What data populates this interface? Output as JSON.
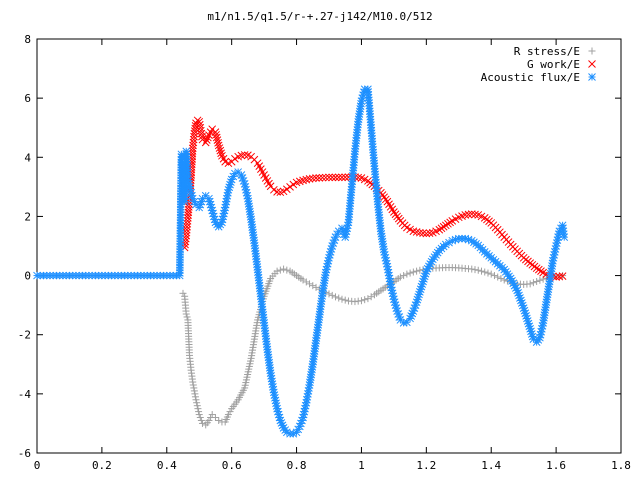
{
  "chart_data": {
    "type": "scatter",
    "title": "m1/n1.5/q1.5/r-+.27-j142/M10.0/512",
    "xlim": [
      0,
      1.8
    ],
    "ylim": [
      -6,
      8
    ],
    "x_ticks": [
      "0",
      "0.2",
      "0.4",
      "0.6",
      "0.8",
      "1",
      "1.2",
      "1.4",
      "1.6",
      "1.8"
    ],
    "y_ticks": [
      "-6",
      "-4",
      "-2",
      "0",
      "2",
      "4",
      "6",
      "8"
    ],
    "legend_position": "top-right",
    "series": [
      {
        "name": "R stress/E",
        "marker": "+",
        "color": "#a0a0a0",
        "points": [
          [
            0.45,
            -0.6
          ],
          [
            0.455,
            -0.7
          ],
          [
            0.46,
            -1.3
          ],
          [
            0.465,
            -1.5
          ],
          [
            0.47,
            -2.7
          ],
          [
            0.475,
            -3.2
          ],
          [
            0.48,
            -3.6
          ],
          [
            0.49,
            -4.2
          ],
          [
            0.5,
            -4.7
          ],
          [
            0.51,
            -5.0
          ],
          [
            0.52,
            -5.05
          ],
          [
            0.53,
            -4.9
          ],
          [
            0.54,
            -4.7
          ],
          [
            0.55,
            -4.8
          ],
          [
            0.56,
            -4.9
          ],
          [
            0.57,
            -4.95
          ],
          [
            0.58,
            -4.95
          ],
          [
            0.59,
            -4.7
          ],
          [
            0.6,
            -4.5
          ],
          [
            0.62,
            -4.2
          ],
          [
            0.64,
            -3.8
          ],
          [
            0.66,
            -2.8
          ],
          [
            0.68,
            -1.5
          ],
          [
            0.7,
            -0.7
          ],
          [
            0.72,
            -0.1
          ],
          [
            0.74,
            0.15
          ],
          [
            0.76,
            0.22
          ],
          [
            0.78,
            0.15
          ],
          [
            0.8,
            0.0
          ],
          [
            0.82,
            -0.15
          ],
          [
            0.84,
            -0.28
          ],
          [
            0.86,
            -0.4
          ],
          [
            0.88,
            -0.52
          ],
          [
            0.9,
            -0.62
          ],
          [
            0.92,
            -0.72
          ],
          [
            0.94,
            -0.8
          ],
          [
            0.96,
            -0.86
          ],
          [
            0.98,
            -0.88
          ],
          [
            1.0,
            -0.85
          ],
          [
            1.02,
            -0.78
          ],
          [
            1.04,
            -0.65
          ],
          [
            1.06,
            -0.5
          ],
          [
            1.08,
            -0.35
          ],
          [
            1.1,
            -0.2
          ],
          [
            1.12,
            -0.05
          ],
          [
            1.14,
            0.05
          ],
          [
            1.16,
            0.12
          ],
          [
            1.18,
            0.18
          ],
          [
            1.2,
            0.22
          ],
          [
            1.22,
            0.25
          ],
          [
            1.24,
            0.26
          ],
          [
            1.26,
            0.27
          ],
          [
            1.28,
            0.27
          ],
          [
            1.3,
            0.26
          ],
          [
            1.32,
            0.24
          ],
          [
            1.34,
            0.22
          ],
          [
            1.36,
            0.18
          ],
          [
            1.38,
            0.12
          ],
          [
            1.4,
            0.05
          ],
          [
            1.42,
            -0.05
          ],
          [
            1.44,
            -0.15
          ],
          [
            1.46,
            -0.22
          ],
          [
            1.48,
            -0.28
          ],
          [
            1.5,
            -0.3
          ],
          [
            1.52,
            -0.28
          ],
          [
            1.54,
            -0.2
          ],
          [
            1.56,
            -0.12
          ],
          [
            1.58,
            -0.06
          ],
          [
            1.6,
            -0.02
          ],
          [
            1.62,
            0.0
          ]
        ]
      },
      {
        "name": "G work/E",
        "marker": "x",
        "color": "#ff0000",
        "points": [
          [
            0.455,
            0.95
          ],
          [
            0.46,
            1.35
          ],
          [
            0.465,
            1.95
          ],
          [
            0.47,
            2.6
          ],
          [
            0.475,
            3.4
          ],
          [
            0.48,
            4.3
          ],
          [
            0.485,
            4.8
          ],
          [
            0.49,
            5.15
          ],
          [
            0.495,
            5.25
          ],
          [
            0.5,
            5.2
          ],
          [
            0.505,
            4.9
          ],
          [
            0.51,
            4.6
          ],
          [
            0.52,
            4.5
          ],
          [
            0.53,
            4.75
          ],
          [
            0.54,
            4.95
          ],
          [
            0.55,
            4.85
          ],
          [
            0.56,
            4.4
          ],
          [
            0.57,
            4.05
          ],
          [
            0.58,
            3.85
          ],
          [
            0.59,
            3.8
          ],
          [
            0.6,
            3.85
          ],
          [
            0.61,
            3.95
          ],
          [
            0.62,
            4.02
          ],
          [
            0.63,
            4.06
          ],
          [
            0.64,
            4.08
          ],
          [
            0.65,
            4.07
          ],
          [
            0.66,
            4.02
          ],
          [
            0.67,
            3.92
          ],
          [
            0.68,
            3.8
          ],
          [
            0.69,
            3.6
          ],
          [
            0.7,
            3.4
          ],
          [
            0.71,
            3.2
          ],
          [
            0.72,
            3.02
          ],
          [
            0.73,
            2.9
          ],
          [
            0.74,
            2.83
          ],
          [
            0.75,
            2.82
          ],
          [
            0.76,
            2.85
          ],
          [
            0.77,
            2.92
          ],
          [
            0.78,
            3.0
          ],
          [
            0.79,
            3.08
          ],
          [
            0.8,
            3.15
          ],
          [
            0.82,
            3.22
          ],
          [
            0.84,
            3.27
          ],
          [
            0.86,
            3.3
          ],
          [
            0.88,
            3.31
          ],
          [
            0.9,
            3.32
          ],
          [
            0.92,
            3.32
          ],
          [
            0.94,
            3.32
          ],
          [
            0.96,
            3.33
          ],
          [
            0.98,
            3.33
          ],
          [
            1.0,
            3.3
          ],
          [
            1.02,
            3.2
          ],
          [
            1.04,
            3.02
          ],
          [
            1.06,
            2.8
          ],
          [
            1.08,
            2.5
          ],
          [
            1.1,
            2.15
          ],
          [
            1.12,
            1.85
          ],
          [
            1.14,
            1.62
          ],
          [
            1.16,
            1.5
          ],
          [
            1.18,
            1.45
          ],
          [
            1.2,
            1.42
          ],
          [
            1.22,
            1.45
          ],
          [
            1.24,
            1.55
          ],
          [
            1.26,
            1.7
          ],
          [
            1.28,
            1.85
          ],
          [
            1.3,
            1.97
          ],
          [
            1.32,
            2.05
          ],
          [
            1.34,
            2.08
          ],
          [
            1.36,
            2.05
          ],
          [
            1.38,
            1.95
          ],
          [
            1.4,
            1.78
          ],
          [
            1.42,
            1.55
          ],
          [
            1.44,
            1.3
          ],
          [
            1.46,
            1.05
          ],
          [
            1.48,
            0.82
          ],
          [
            1.5,
            0.6
          ],
          [
            1.52,
            0.42
          ],
          [
            1.54,
            0.25
          ],
          [
            1.56,
            0.1
          ],
          [
            1.58,
            0.0
          ],
          [
            1.6,
            -0.05
          ],
          [
            1.62,
            -0.02
          ]
        ]
      },
      {
        "name": "Acoustic flux/E",
        "marker": "*",
        "color": "#1e90ff",
        "points": [
          [
            0.0,
            0.0
          ],
          [
            0.02,
            0.0
          ],
          [
            0.04,
            0.0
          ],
          [
            0.06,
            0.0
          ],
          [
            0.08,
            0.0
          ],
          [
            0.1,
            0.0
          ],
          [
            0.12,
            0.0
          ],
          [
            0.14,
            0.0
          ],
          [
            0.16,
            0.0
          ],
          [
            0.18,
            0.0
          ],
          [
            0.2,
            0.0
          ],
          [
            0.22,
            0.0
          ],
          [
            0.24,
            0.0
          ],
          [
            0.26,
            0.0
          ],
          [
            0.28,
            0.0
          ],
          [
            0.3,
            0.0
          ],
          [
            0.32,
            0.0
          ],
          [
            0.34,
            0.0
          ],
          [
            0.36,
            0.0
          ],
          [
            0.38,
            0.0
          ],
          [
            0.4,
            0.0
          ],
          [
            0.42,
            0.0
          ],
          [
            0.44,
            0.0
          ],
          [
            0.445,
            4.1
          ],
          [
            0.45,
            3.7
          ],
          [
            0.455,
            2.5
          ],
          [
            0.46,
            4.2
          ],
          [
            0.465,
            3.3
          ],
          [
            0.47,
            3.0
          ],
          [
            0.48,
            2.6
          ],
          [
            0.49,
            2.4
          ],
          [
            0.5,
            2.3
          ],
          [
            0.51,
            2.6
          ],
          [
            0.52,
            2.7
          ],
          [
            0.53,
            2.6
          ],
          [
            0.54,
            2.2
          ],
          [
            0.55,
            1.8
          ],
          [
            0.56,
            1.65
          ],
          [
            0.57,
            1.8
          ],
          [
            0.58,
            2.3
          ],
          [
            0.59,
            2.9
          ],
          [
            0.6,
            3.25
          ],
          [
            0.61,
            3.45
          ],
          [
            0.62,
            3.5
          ],
          [
            0.63,
            3.4
          ],
          [
            0.64,
            3.1
          ],
          [
            0.65,
            2.6
          ],
          [
            0.66,
            1.9
          ],
          [
            0.67,
            1.1
          ],
          [
            0.68,
            0.2
          ],
          [
            0.69,
            -0.7
          ],
          [
            0.7,
            -1.6
          ],
          [
            0.71,
            -2.5
          ],
          [
            0.72,
            -3.3
          ],
          [
            0.73,
            -3.95
          ],
          [
            0.74,
            -4.5
          ],
          [
            0.75,
            -4.9
          ],
          [
            0.76,
            -5.15
          ],
          [
            0.77,
            -5.3
          ],
          [
            0.78,
            -5.35
          ],
          [
            0.79,
            -5.35
          ],
          [
            0.8,
            -5.3
          ],
          [
            0.81,
            -5.1
          ],
          [
            0.82,
            -4.8
          ],
          [
            0.83,
            -4.3
          ],
          [
            0.84,
            -3.7
          ],
          [
            0.85,
            -3.0
          ],
          [
            0.86,
            -2.2
          ],
          [
            0.87,
            -1.4
          ],
          [
            0.88,
            -0.6
          ],
          [
            0.89,
            0.1
          ],
          [
            0.9,
            0.6
          ],
          [
            0.91,
            1.0
          ],
          [
            0.92,
            1.3
          ],
          [
            0.93,
            1.5
          ],
          [
            0.94,
            1.6
          ],
          [
            0.95,
            1.3
          ],
          [
            0.96,
            1.8
          ],
          [
            0.97,
            3.0
          ],
          [
            0.98,
            4.2
          ],
          [
            0.99,
            5.2
          ],
          [
            1.0,
            5.9
          ],
          [
            1.01,
            6.3
          ],
          [
            1.02,
            6.3
          ],
          [
            1.03,
            5.0
          ],
          [
            1.04,
            3.7
          ],
          [
            1.05,
            2.5
          ],
          [
            1.06,
            1.5
          ],
          [
            1.07,
            0.8
          ],
          [
            1.08,
            0.3
          ],
          [
            1.09,
            -0.3
          ],
          [
            1.1,
            -0.8
          ],
          [
            1.11,
            -1.2
          ],
          [
            1.12,
            -1.5
          ],
          [
            1.13,
            -1.6
          ],
          [
            1.14,
            -1.58
          ],
          [
            1.15,
            -1.45
          ],
          [
            1.16,
            -1.2
          ],
          [
            1.17,
            -0.9
          ],
          [
            1.18,
            -0.55
          ],
          [
            1.19,
            -0.2
          ],
          [
            1.2,
            0.15
          ],
          [
            1.22,
            0.55
          ],
          [
            1.24,
            0.85
          ],
          [
            1.26,
            1.05
          ],
          [
            1.28,
            1.18
          ],
          [
            1.3,
            1.25
          ],
          [
            1.32,
            1.25
          ],
          [
            1.34,
            1.18
          ],
          [
            1.36,
            1.02
          ],
          [
            1.38,
            0.8
          ],
          [
            1.4,
            0.6
          ],
          [
            1.42,
            0.4
          ],
          [
            1.44,
            0.2
          ],
          [
            1.46,
            -0.1
          ],
          [
            1.48,
            -0.5
          ],
          [
            1.5,
            -1.1
          ],
          [
            1.52,
            -1.8
          ],
          [
            1.53,
            -2.15
          ],
          [
            1.54,
            -2.25
          ],
          [
            1.55,
            -2.1
          ],
          [
            1.56,
            -1.6
          ],
          [
            1.57,
            -0.9
          ],
          [
            1.58,
            -0.2
          ],
          [
            1.59,
            0.5
          ],
          [
            1.6,
            1.0
          ],
          [
            1.61,
            1.5
          ],
          [
            1.62,
            1.7
          ],
          [
            1.625,
            1.3
          ]
        ]
      }
    ]
  }
}
